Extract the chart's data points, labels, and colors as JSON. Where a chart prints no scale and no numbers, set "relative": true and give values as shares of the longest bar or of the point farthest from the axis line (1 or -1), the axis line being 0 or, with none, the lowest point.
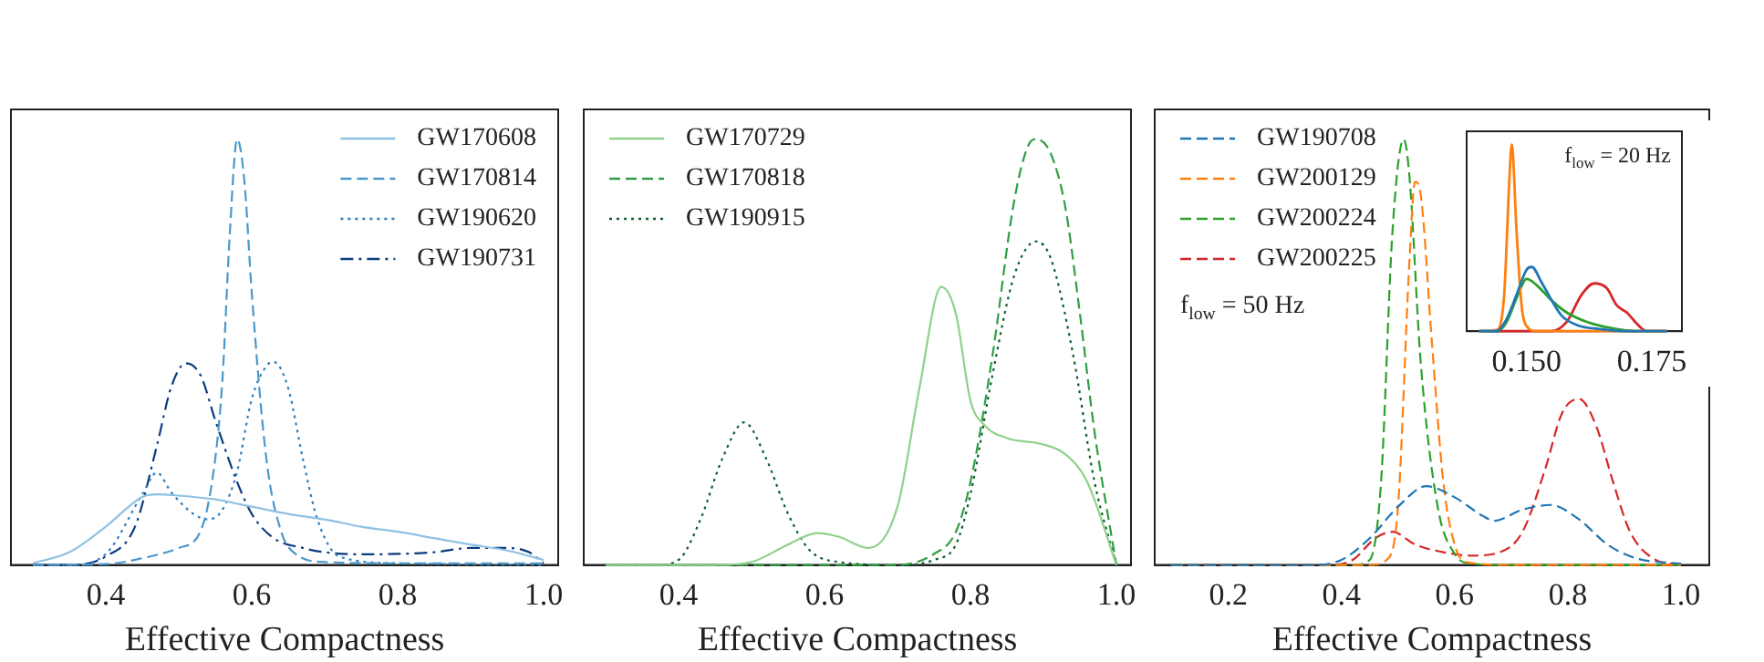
{
  "chart_data": [
    {
      "type": "line",
      "relative": true,
      "xlabel": "Effective Compactness",
      "xlim": [
        0.27,
        1.02
      ],
      "xticks": [
        {
          "value": 0.4,
          "label": "0.4"
        },
        {
          "value": 0.6,
          "label": "0.6"
        },
        {
          "value": 0.8,
          "label": "0.8"
        },
        {
          "value": 1.0,
          "label": "1.0"
        }
      ],
      "grid": false,
      "legend": "top right",
      "tick_labels": "x",
      "series": [
        {
          "name": "GW170608",
          "color": "#8fc1e3",
          "line_style": "solid",
          "x": [
            0.3,
            0.35,
            0.4,
            0.45,
            0.47,
            0.5,
            0.55,
            0.6,
            0.65,
            0.7,
            0.75,
            0.8,
            0.85,
            0.9,
            0.95,
            1.0
          ],
          "values": [
            0.004,
            0.03,
            0.09,
            0.16,
            0.166,
            0.163,
            0.154,
            0.137,
            0.12,
            0.107,
            0.09,
            0.078,
            0.063,
            0.048,
            0.034,
            0.012
          ]
        },
        {
          "name": "GW170814",
          "color": "#4a98c9",
          "line_style": "dashed",
          "x": [
            0.3,
            0.4,
            0.45,
            0.5,
            0.53,
            0.55,
            0.56,
            0.57,
            0.58,
            0.59,
            0.6,
            0.62,
            0.64,
            0.66,
            0.7,
            0.8,
            1.0
          ],
          "values": [
            0,
            0.002,
            0.016,
            0.04,
            0.08,
            0.25,
            0.44,
            0.78,
            1.0,
            0.9,
            0.64,
            0.25,
            0.08,
            0.026,
            0.007,
            0.004,
            0.004
          ]
        },
        {
          "name": "GW190620",
          "color": "#2e7ebc",
          "line_style": "dotted",
          "x": [
            0.3,
            0.35,
            0.4,
            0.45,
            0.47,
            0.49,
            0.52,
            0.54,
            0.56,
            0.58,
            0.6,
            0.62,
            0.63,
            0.65,
            0.67,
            0.69,
            0.72,
            0.8,
            1.0
          ],
          "values": [
            0,
            0,
            0.026,
            0.166,
            0.217,
            0.17,
            0.12,
            0.107,
            0.13,
            0.22,
            0.39,
            0.467,
            0.477,
            0.415,
            0.25,
            0.107,
            0.02,
            0.004,
            0
          ]
        },
        {
          "name": "GW190731",
          "color": "#0b3c7d",
          "line_style": "dashdot",
          "x": [
            0.3,
            0.35,
            0.4,
            0.44,
            0.47,
            0.49,
            0.51,
            0.53,
            0.55,
            0.58,
            0.6,
            0.63,
            0.67,
            0.7,
            0.75,
            0.8,
            0.85,
            0.9,
            0.95,
            0.98,
            1.0
          ],
          "values": [
            0,
            0,
            0.02,
            0.09,
            0.28,
            0.42,
            0.474,
            0.445,
            0.34,
            0.195,
            0.12,
            0.063,
            0.04,
            0.03,
            0.025,
            0.026,
            0.03,
            0.04,
            0.04,
            0.03,
            0.004
          ]
        }
      ]
    },
    {
      "type": "line",
      "relative": true,
      "xlabel": "Effective Compactness",
      "xlim": [
        0.27,
        1.02
      ],
      "xticks": [
        {
          "value": 0.4,
          "label": "0.4"
        },
        {
          "value": 0.6,
          "label": "0.6"
        },
        {
          "value": 0.8,
          "label": "0.8"
        },
        {
          "value": 1.0,
          "label": "1.0"
        }
      ],
      "grid": false,
      "legend": "top left",
      "tick_labels": "x",
      "series": [
        {
          "name": "GW170729",
          "color": "#8fd18b",
          "line_style": "solid",
          "x": [
            0.3,
            0.45,
            0.5,
            0.55,
            0.59,
            0.62,
            0.66,
            0.7,
            0.73,
            0.76,
            0.78,
            0.8,
            0.82,
            0.85,
            0.9,
            0.93,
            0.96,
            1.0
          ],
          "values": [
            0,
            0,
            0.007,
            0.048,
            0.075,
            0.066,
            0.04,
            0.137,
            0.415,
            0.653,
            0.59,
            0.386,
            0.327,
            0.298,
            0.283,
            0.26,
            0.195,
            0
          ]
        },
        {
          "name": "GW170818",
          "color": "#2f9e44",
          "line_style": "dashed",
          "x": [
            0.3,
            0.7,
            0.75,
            0.78,
            0.8,
            0.83,
            0.86,
            0.88,
            0.89,
            0.91,
            0.93,
            0.95,
            0.97,
            1.0
          ],
          "values": [
            0,
            0,
            0.026,
            0.078,
            0.195,
            0.49,
            0.856,
            0.988,
            1.0,
            0.966,
            0.84,
            0.59,
            0.313,
            0
          ]
        },
        {
          "name": "GW190915",
          "color": "#0d5e2a",
          "line_style": "dotted",
          "x": [
            0.3,
            0.37,
            0.4,
            0.43,
            0.46,
            0.49,
            0.52,
            0.55,
            0.58,
            0.62,
            0.7,
            0.75,
            0.78,
            0.8,
            0.83,
            0.86,
            0.89,
            0.91,
            0.94,
            0.97,
            1.0
          ],
          "values": [
            0,
            0,
            0.012,
            0.107,
            0.25,
            0.335,
            0.25,
            0.12,
            0.034,
            0.007,
            0,
            0.012,
            0.048,
            0.166,
            0.445,
            0.68,
            0.76,
            0.72,
            0.5,
            0.195,
            0
          ]
        }
      ]
    },
    {
      "type": "line",
      "relative": true,
      "xlabel": "Effective Compactness",
      "xlim": [
        0.07,
        1.05
      ],
      "xticks": [
        {
          "value": 0.2,
          "label": "0.2"
        },
        {
          "value": 0.4,
          "label": "0.4"
        },
        {
          "value": 0.6,
          "label": "0.6"
        },
        {
          "value": 0.8,
          "label": "0.8"
        },
        {
          "value": 1.0,
          "label": "1.0"
        }
      ],
      "grid": false,
      "legend": "top left",
      "tick_labels": "x",
      "annotations": [
        "f$_{low}$ = 50 Hz"
      ],
      "series": [
        {
          "name": "GW190708",
          "color": "#1f77b4",
          "line_style": "dashed",
          "x": [
            0.1,
            0.35,
            0.4,
            0.45,
            0.5,
            0.55,
            0.6,
            0.65,
            0.67,
            0.72,
            0.77,
            0.82,
            0.87,
            0.92,
            1.0
          ],
          "values": [
            0,
            0,
            0.012,
            0.063,
            0.137,
            0.185,
            0.159,
            0.115,
            0.104,
            0.13,
            0.141,
            0.107,
            0.048,
            0.016,
            0.003
          ]
        },
        {
          "name": "GW200129",
          "color": "#ff7f0e",
          "line_style": "dashed",
          "x": [
            0.1,
            0.45,
            0.48,
            0.5,
            0.52,
            0.53,
            0.54,
            0.56,
            0.58,
            0.6,
            0.62,
            0.7,
            1.0
          ],
          "values": [
            0,
            0,
            0.012,
            0.137,
            0.71,
            0.9,
            0.87,
            0.52,
            0.195,
            0.048,
            0.007,
            0,
            0
          ]
        },
        {
          "name": "GW200224",
          "color": "#2ca02c",
          "line_style": "dashed",
          "x": [
            0.1,
            0.42,
            0.45,
            0.47,
            0.49,
            0.51,
            0.52,
            0.54,
            0.57,
            0.6,
            0.63,
            0.7,
            1.0
          ],
          "values": [
            0,
            0,
            0.012,
            0.195,
            0.78,
            1.0,
            0.915,
            0.477,
            0.137,
            0.026,
            0.003,
            0,
            0
          ]
        },
        {
          "name": "GW200225",
          "color": "#d62728",
          "line_style": "dashed",
          "x": [
            0.1,
            0.38,
            0.42,
            0.46,
            0.49,
            0.53,
            0.58,
            0.63,
            0.68,
            0.72,
            0.76,
            0.79,
            0.82,
            0.85,
            0.88,
            0.91,
            0.95,
            1.0
          ],
          "values": [
            0,
            0,
            0.012,
            0.063,
            0.078,
            0.048,
            0.03,
            0.022,
            0.03,
            0.078,
            0.225,
            0.357,
            0.39,
            0.327,
            0.195,
            0.078,
            0.016,
            0
          ]
        }
      ]
    },
    {
      "type": "line",
      "relative": true,
      "xlim": [
        0.138,
        0.181
      ],
      "xticks": [
        {
          "value": 0.15,
          "label": "0.150"
        },
        {
          "value": 0.175,
          "label": "0.175"
        }
      ],
      "grid": false,
      "tick_labels": "x",
      "annotations": [
        "f$_{low}$ = 20 Hz"
      ],
      "series": [
        {
          "color": "#1f77b4",
          "line_style": "solid",
          "x": [
            0.1405,
            0.144,
            0.146,
            0.148,
            0.15,
            0.151,
            0.153,
            0.155,
            0.157,
            0.16,
            0.165,
            0.17,
            0.178
          ],
          "values": [
            0,
            0,
            0.066,
            0.197,
            0.33,
            0.344,
            0.26,
            0.164,
            0.082,
            0.033,
            0.01,
            0,
            0
          ]
        },
        {
          "color": "#ff7f0e",
          "line_style": "solid",
          "x": [
            0.1405,
            0.144,
            0.1455,
            0.1465,
            0.147,
            0.148,
            0.149,
            0.15,
            0.152,
            0.178
          ],
          "values": [
            0,
            0.007,
            0.197,
            0.79,
            1.0,
            0.52,
            0.13,
            0.026,
            0,
            0
          ]
        },
        {
          "color": "#2ca02c",
          "line_style": "solid",
          "x": [
            0.1405,
            0.144,
            0.146,
            0.148,
            0.15,
            0.152,
            0.155,
            0.158,
            0.162,
            0.167,
            0.172,
            0.178
          ],
          "values": [
            0,
            0,
            0.05,
            0.18,
            0.28,
            0.246,
            0.164,
            0.1,
            0.05,
            0.016,
            0,
            0
          ]
        },
        {
          "color": "#d62728",
          "line_style": "solid",
          "x": [
            0.1405,
            0.155,
            0.158,
            0.161,
            0.1635,
            0.166,
            0.168,
            0.17,
            0.172,
            0.174,
            0.178
          ],
          "values": [
            0,
            0,
            0.05,
            0.197,
            0.256,
            0.23,
            0.138,
            0.1,
            0.04,
            0,
            0
          ]
        }
      ]
    }
  ]
}
